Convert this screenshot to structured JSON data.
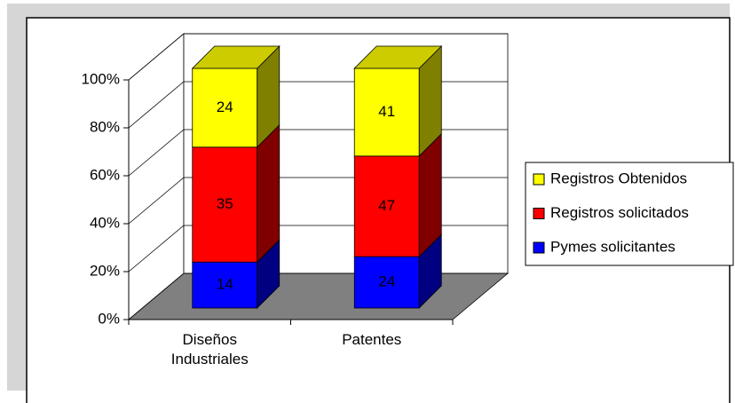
{
  "chart_data": {
    "type": "bar",
    "stacking": "percent",
    "categories": [
      "Diseños Industriales",
      "Patentes"
    ],
    "series": [
      {
        "name": "Pymes solicitantes",
        "color": "#0000ff",
        "values": [
          14,
          24
        ]
      },
      {
        "name": "Registros solicitados",
        "color": "#ff0000",
        "values": [
          35,
          47
        ]
      },
      {
        "name": "Registros Obtenidos",
        "color": "#ffff00",
        "values": [
          24,
          41
        ]
      }
    ],
    "ylim": [
      0,
      100
    ],
    "yticks": [
      {
        "value": 0,
        "label": "0%"
      },
      {
        "value": 20,
        "label": "20%"
      },
      {
        "value": 40,
        "label": "40%"
      },
      {
        "value": 60,
        "label": "60%"
      },
      {
        "value": 80,
        "label": "80%"
      },
      {
        "value": 100,
        "label": "100%"
      }
    ],
    "grid": true,
    "legend": "right"
  }
}
